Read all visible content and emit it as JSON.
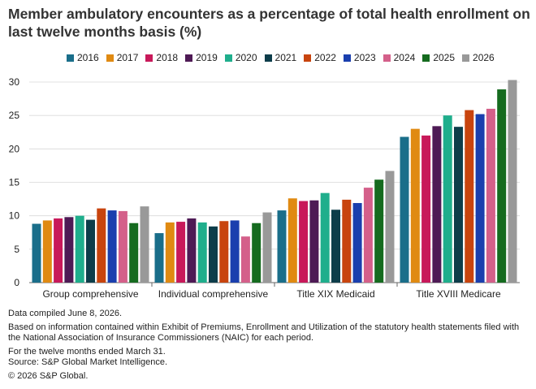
{
  "title": "Member ambulatory encounters as a percentage of total health enrollment on last twelve months basis (%)",
  "chart_data": {
    "type": "bar",
    "categories": [
      "Group comprehensive",
      "Individual comprehensive",
      "Title XIX Medicaid",
      "Title XVIII Medicare"
    ],
    "series": [
      {
        "name": "2016",
        "color": "#1a6e8a",
        "values": [
          8.8,
          7.4,
          10.8,
          21.8
        ]
      },
      {
        "name": "2017",
        "color": "#e08a12",
        "values": [
          9.3,
          9.0,
          12.6,
          23.0
        ]
      },
      {
        "name": "2018",
        "color": "#c8195a",
        "values": [
          9.6,
          9.1,
          12.2,
          22.0
        ]
      },
      {
        "name": "2019",
        "color": "#4e1a55",
        "values": [
          9.8,
          9.6,
          12.3,
          23.4
        ]
      },
      {
        "name": "2020",
        "color": "#1fae8c",
        "values": [
          10.0,
          9.0,
          13.4,
          25.0
        ]
      },
      {
        "name": "2021",
        "color": "#0d3d4a",
        "values": [
          9.4,
          8.4,
          10.9,
          23.3
        ]
      },
      {
        "name": "2022",
        "color": "#c8440e",
        "values": [
          11.1,
          9.2,
          12.4,
          25.8
        ]
      },
      {
        "name": "2023",
        "color": "#1a3fae",
        "values": [
          10.8,
          9.3,
          11.9,
          25.2
        ]
      },
      {
        "name": "2024",
        "color": "#d4608a",
        "values": [
          10.7,
          6.9,
          14.2,
          26.0
        ]
      },
      {
        "name": "2025",
        "color": "#156b1f",
        "values": [
          8.9,
          8.9,
          15.4,
          28.9
        ]
      },
      {
        "name": "2026",
        "color": "#999999",
        "values": [
          11.4,
          10.5,
          16.7,
          30.3
        ]
      }
    ],
    "ylim": [
      0,
      30
    ],
    "yticks": [
      "0",
      "5",
      "10",
      "15",
      "20",
      "25",
      "30"
    ],
    "grid": true,
    "legend_position": "top"
  },
  "notes": [
    "Data compiled June 8, 2026.",
    "Based on information contained within Exhibit of Premiums, Enrollment and Utilization of the statutory health statements filed with the National Association of Insurance Commissioners (NAIC) for each period.",
    "For the twelve months ended March 31.",
    "Source: S&P Global Market Intelligence.",
    "© 2026 S&P Global."
  ]
}
